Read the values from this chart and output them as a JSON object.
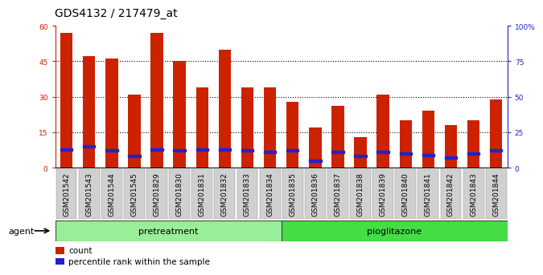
{
  "title": "GDS4132 / 217479_at",
  "samples": [
    "GSM201542",
    "GSM201543",
    "GSM201544",
    "GSM201545",
    "GSM201829",
    "GSM201830",
    "GSM201831",
    "GSM201832",
    "GSM201833",
    "GSM201834",
    "GSM201835",
    "GSM201836",
    "GSM201837",
    "GSM201838",
    "GSM201839",
    "GSM201840",
    "GSM201841",
    "GSM201842",
    "GSM201843",
    "GSM201844"
  ],
  "count_values": [
    57,
    47,
    46,
    31,
    57,
    45,
    34,
    50,
    34,
    34,
    28,
    17,
    26,
    13,
    31,
    20,
    24,
    18,
    20,
    29
  ],
  "percentile_values": [
    13,
    15,
    12,
    8,
    13,
    12,
    13,
    13,
    12,
    11,
    12,
    5,
    11,
    8,
    11,
    10,
    9,
    7,
    10,
    12
  ],
  "bar_color": "#cc2200",
  "percentile_color": "#2222cc",
  "pretreatment_count": 10,
  "pioglitazone_count": 10,
  "ylim_left": [
    0,
    60
  ],
  "ylim_right": [
    0,
    100
  ],
  "yticks_left": [
    0,
    15,
    30,
    45,
    60
  ],
  "yticks_right": [
    0,
    25,
    50,
    75,
    100
  ],
  "ytick_labels_left": [
    "0",
    "15",
    "30",
    "45",
    "60"
  ],
  "ytick_labels_right": [
    "0",
    "25",
    "50",
    "75",
    "100%"
  ],
  "grid_values": [
    15,
    30,
    45
  ],
  "bar_width": 0.55,
  "pretreatment_color": "#99ee99",
  "pioglitazone_color": "#44dd44",
  "agent_label": "agent",
  "pretreatment_label": "pretreatment",
  "pioglitazone_label": "pioglitazone",
  "legend_count": "count",
  "legend_percentile": "percentile rank within the sample",
  "title_fontsize": 10,
  "tick_fontsize": 6.5,
  "label_fontsize": 8,
  "legend_fontsize": 7.5,
  "xticklabel_bg": "#d0d0d0"
}
